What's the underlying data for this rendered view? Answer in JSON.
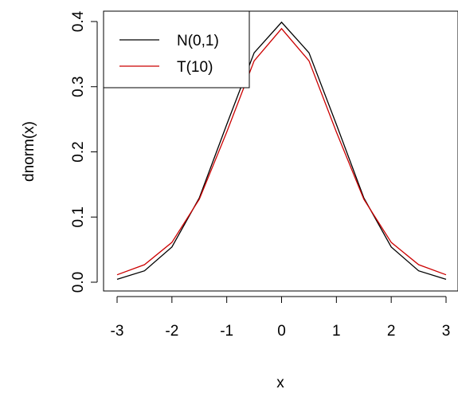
{
  "chart_data": {
    "type": "line",
    "xlabel": "x",
    "ylabel": "dnorm(x)",
    "xlim": [
      -3,
      3
    ],
    "ylim": [
      0,
      0.4
    ],
    "x_ticks": [
      -3,
      -2,
      -1,
      0,
      1,
      2,
      3
    ],
    "y_ticks": [
      0.0,
      0.1,
      0.2,
      0.3,
      0.4
    ],
    "x_tick_labels": [
      "-3",
      "-2",
      "-1",
      "0",
      "1",
      "2",
      "3"
    ],
    "y_tick_labels": [
      "0.0",
      "0.1",
      "0.2",
      "0.3",
      "0.4"
    ],
    "legend_position": "top-left",
    "series": [
      {
        "name": "N(0,1)",
        "color": "#000000",
        "x": [
          -3.0,
          -2.5,
          -2.0,
          -1.5,
          -1.0,
          -0.5,
          0.0,
          0.5,
          1.0,
          1.5,
          2.0,
          2.5,
          3.0
        ],
        "values": [
          0.0044,
          0.0175,
          0.054,
          0.1295,
          0.242,
          0.3521,
          0.3989,
          0.3521,
          0.242,
          0.1295,
          0.054,
          0.0175,
          0.0044
        ]
      },
      {
        "name": "T(10)",
        "color": "#cc0000",
        "x": [
          -3.0,
          -2.5,
          -2.0,
          -1.5,
          -1.0,
          -0.5,
          0.0,
          0.5,
          1.0,
          1.5,
          2.0,
          2.5,
          3.0
        ],
        "values": [
          0.0114,
          0.0269,
          0.0611,
          0.1274,
          0.2304,
          0.3397,
          0.3891,
          0.3397,
          0.2304,
          0.1274,
          0.0611,
          0.0269,
          0.0114
        ]
      }
    ]
  }
}
